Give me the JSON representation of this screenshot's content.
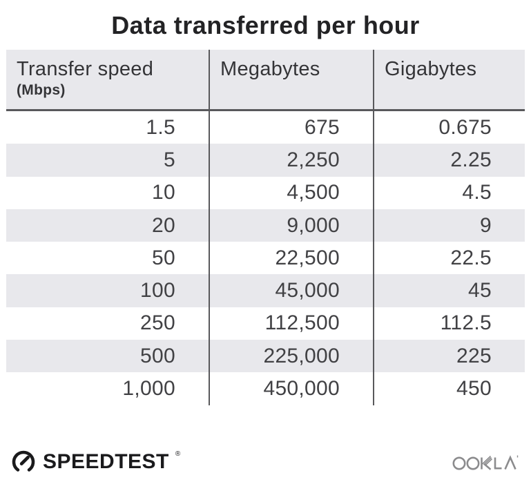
{
  "title": "Data transferred per hour",
  "chart_data": {
    "type": "table",
    "title": "Data transferred per hour",
    "columns": [
      "Transfer speed (Mbps)",
      "Megabytes",
      "Gigabytes"
    ],
    "rows": [
      [
        1.5,
        675,
        0.675
      ],
      [
        5,
        2250,
        2.25
      ],
      [
        10,
        4500,
        4.5
      ],
      [
        20,
        9000,
        9
      ],
      [
        50,
        22500,
        22.5
      ],
      [
        100,
        45000,
        45
      ],
      [
        250,
        112500,
        112.5
      ],
      [
        500,
        225000,
        225
      ],
      [
        1000,
        450000,
        450
      ]
    ]
  },
  "header": {
    "col1_label": "Transfer speed",
    "col1_sub": "(Mbps)",
    "col2_label": "Megabytes",
    "col3_label": "Gigabytes"
  },
  "display_rows": [
    [
      "1.5",
      "675",
      "0.675"
    ],
    [
      "5",
      "2,250",
      "2.25"
    ],
    [
      "10",
      "4,500",
      "4.5"
    ],
    [
      "20",
      "9,000",
      "9"
    ],
    [
      "50",
      "22,500",
      "22.5"
    ],
    [
      "100",
      "45,000",
      "45"
    ],
    [
      "250",
      "112,500",
      "112.5"
    ],
    [
      "500",
      "225,000",
      "225"
    ],
    [
      "1,000",
      "450,000",
      "450"
    ]
  ],
  "footer": {
    "brand": "SPEEDTEST",
    "brand_mark": "®",
    "partner": "OOKLA"
  },
  "colors": {
    "stripe": "#e8e8ec",
    "line": "#58585b",
    "title_text": "#232325",
    "data_text": "#414144",
    "header_text": "#343437",
    "brand_black": "#1a1a1c",
    "ookla_gray": "#8b8b8d"
  }
}
